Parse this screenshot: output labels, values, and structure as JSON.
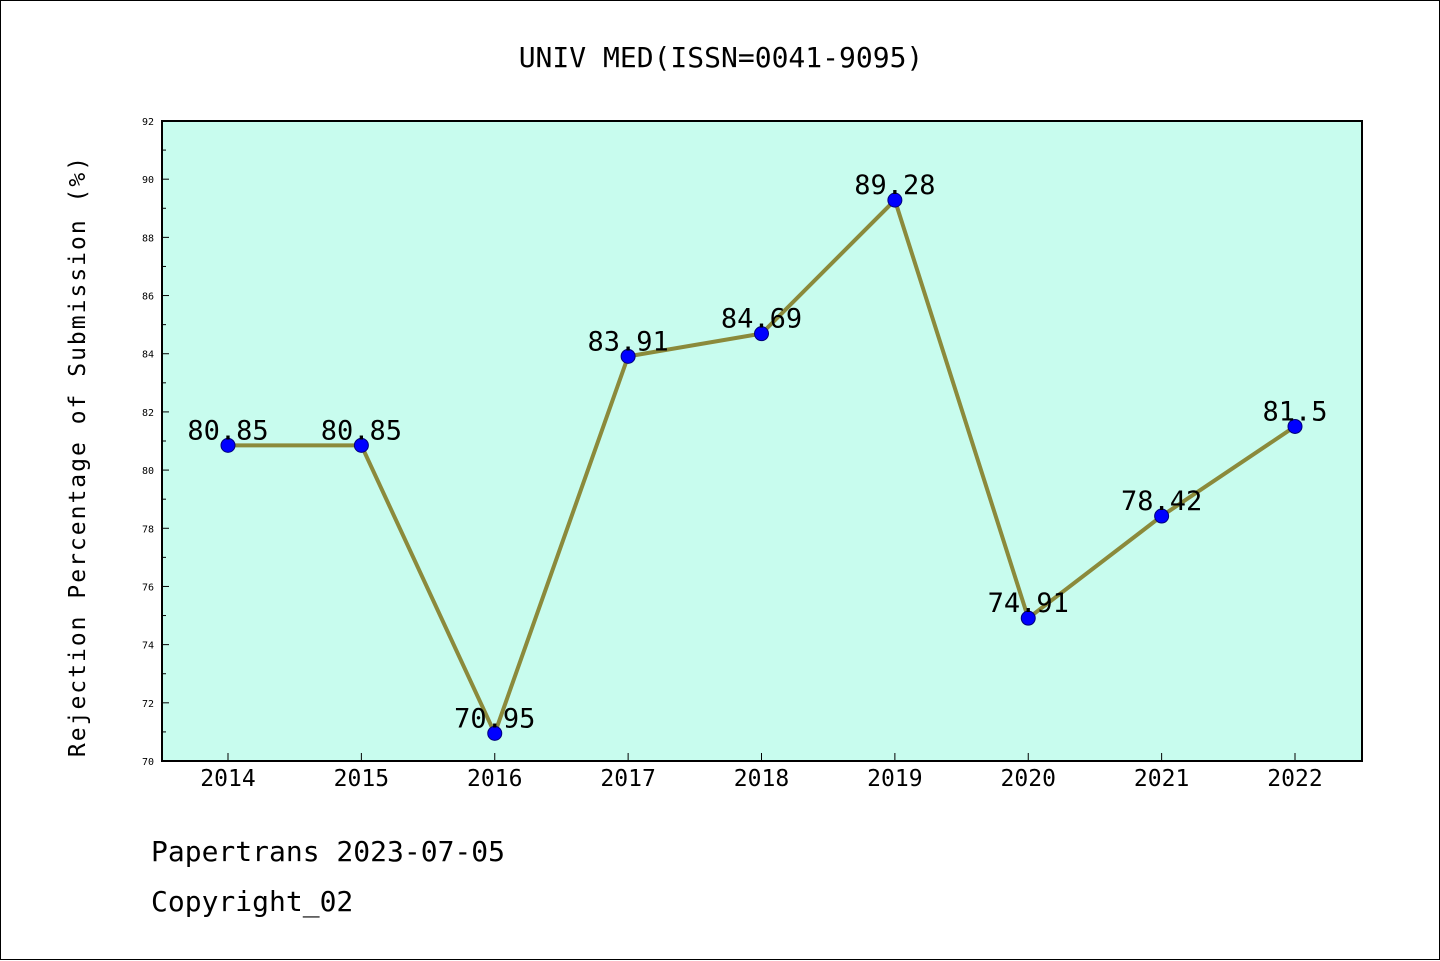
{
  "chart_data": {
    "type": "line",
    "title": "UNIV MED(ISSN=0041-9095)",
    "ylabel": "Rejection Percentage of Submission (%)",
    "xlabel": "",
    "categories": [
      "2014",
      "2015",
      "2016",
      "2017",
      "2018",
      "2019",
      "2020",
      "2021",
      "2022"
    ],
    "series": [
      {
        "values": [
          80.85,
          80.85,
          70.95,
          83.91,
          84.69,
          89.28,
          74.91,
          78.42,
          81.5
        ],
        "labels": [
          "80.85",
          "80.85",
          "70.95",
          "83.91",
          "84.69",
          "89.28",
          "74.91",
          "78.42",
          "81.5"
        ]
      }
    ],
    "ylim": [
      70,
      92
    ],
    "yticks": [
      "70",
      "72",
      "74",
      "76",
      "78",
      "80",
      "82",
      "84",
      "86",
      "88",
      "90",
      "92"
    ],
    "grid": false,
    "colors": {
      "plot_background": "#c8fcee",
      "line": "#8b8a3b",
      "marker": "#0000ff"
    }
  },
  "footer": {
    "line1": "Papertrans 2023-07-05",
    "line2": "Copyright_02"
  }
}
